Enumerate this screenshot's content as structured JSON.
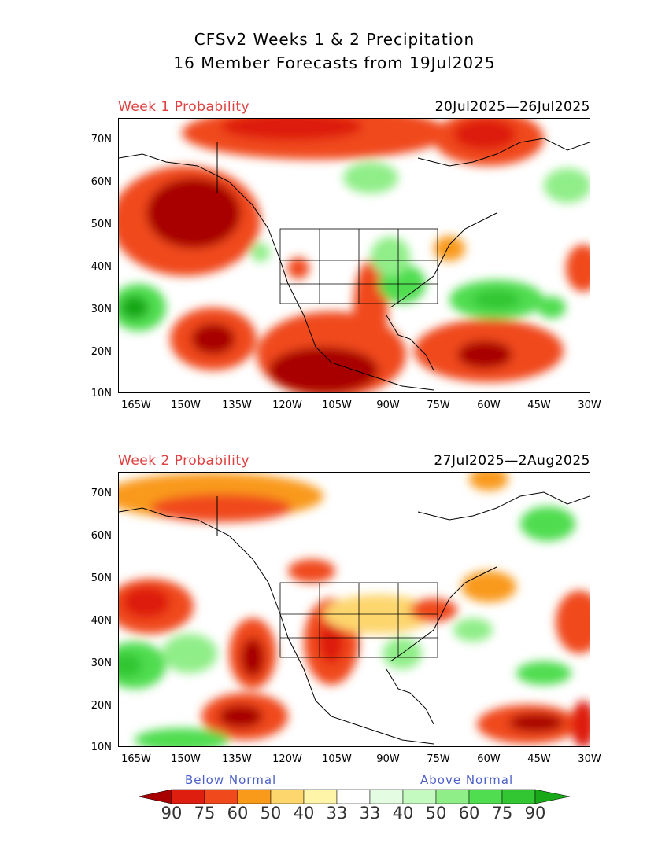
{
  "header": {
    "title_line1": "CFSv2 Weeks 1 & 2 Precipitation",
    "title_line2": "16 Member Forecasts from 19Jul2025"
  },
  "panels": [
    {
      "label": "Week 1 Probability",
      "dates": "20Jul2025—26Jul2025"
    },
    {
      "label": "Week 2 Probability",
      "dates": "27Jul2025—2Aug2025"
    }
  ],
  "axes": {
    "lat_labels": [
      "70N",
      "60N",
      "50N",
      "40N",
      "30N",
      "20N",
      "10N"
    ],
    "lon_labels": [
      "165W",
      "150W",
      "135W",
      "120W",
      "105W",
      "90W",
      "75W",
      "60W",
      "45W",
      "30W"
    ]
  },
  "legend": {
    "below_label": "Below Normal",
    "above_label": "Above Normal",
    "values": [
      "90",
      "75",
      "60",
      "50",
      "40",
      "33",
      "33",
      "40",
      "50",
      "60",
      "75",
      "90"
    ],
    "colors": [
      "#a80000",
      "#de1f10",
      "#f04a1c",
      "#f99a1a",
      "#fdd66e",
      "#fff5a8",
      "#ffffff",
      "#e4fde2",
      "#c4fac0",
      "#90ee88",
      "#50dd50",
      "#33c633",
      "#18a818"
    ]
  }
}
